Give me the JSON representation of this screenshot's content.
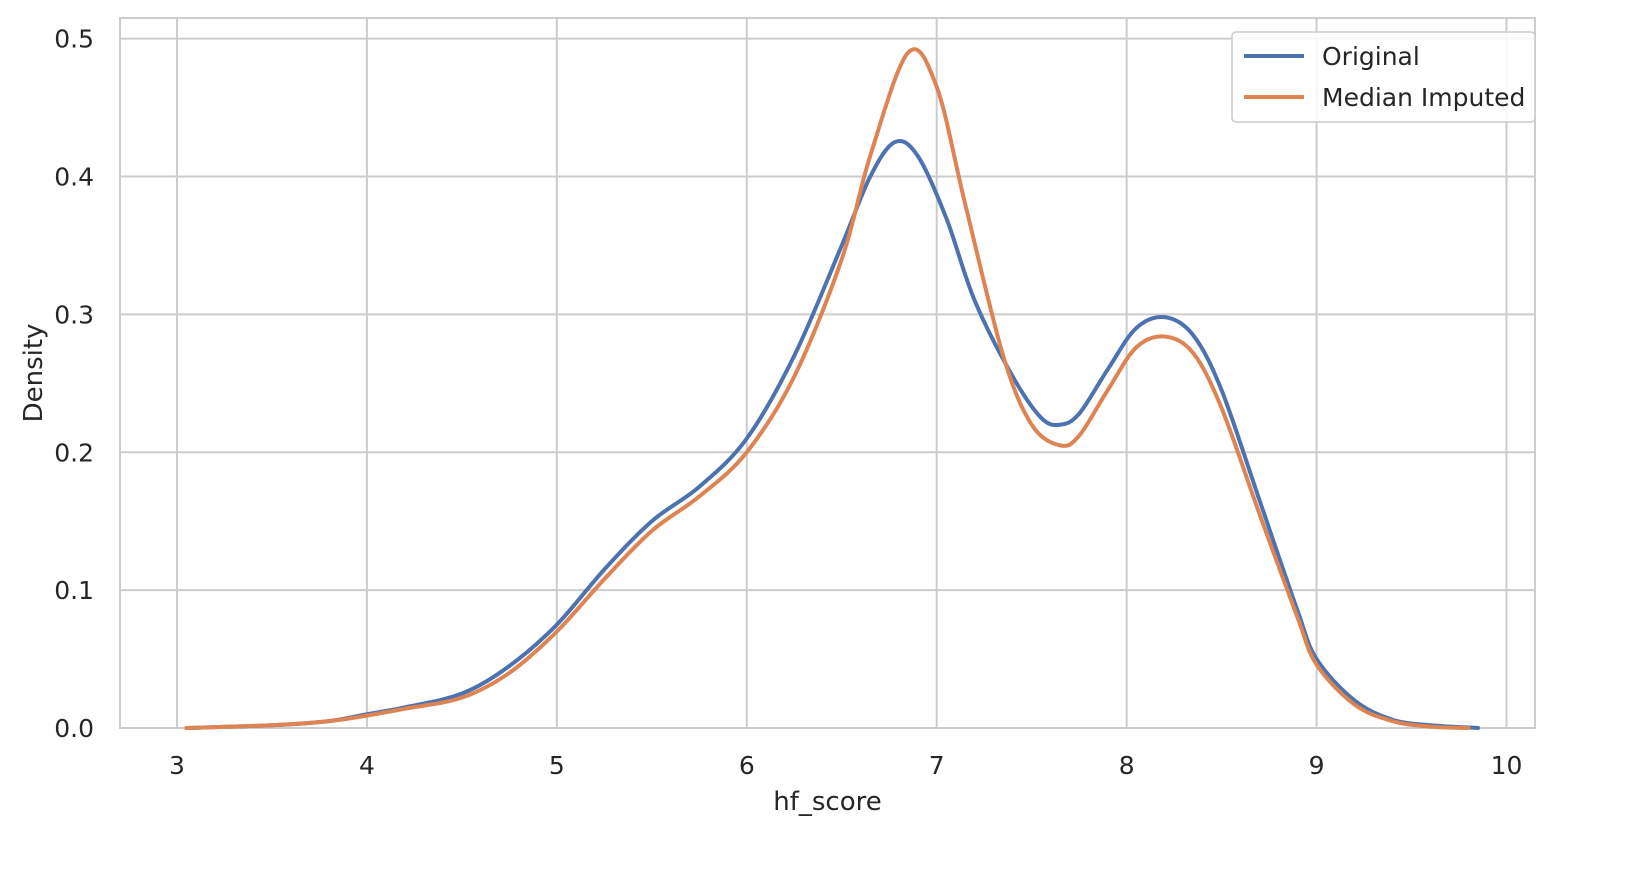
{
  "chart_data": {
    "type": "line",
    "title": "",
    "xlabel": "hf_score",
    "ylabel": "Density",
    "xlim": [
      2.7,
      10.15
    ],
    "ylim": [
      0.0,
      0.515
    ],
    "xticks": [
      3,
      4,
      5,
      6,
      7,
      8,
      9,
      10
    ],
    "xtick_labels": [
      "3",
      "4",
      "5",
      "6",
      "7",
      "8",
      "9",
      "10"
    ],
    "yticks": [
      0.0,
      0.1,
      0.2,
      0.3,
      0.4,
      0.5
    ],
    "ytick_labels": [
      "0.0",
      "0.1",
      "0.2",
      "0.3",
      "0.4",
      "0.5"
    ],
    "grid": true,
    "legend_position": "top-right",
    "series": [
      {
        "name": "Original",
        "color": "#4c72b0",
        "x": [
          3.05,
          3.5,
          3.8,
          4.0,
          4.2,
          4.5,
          4.75,
          5.0,
          5.25,
          5.5,
          5.75,
          6.0,
          6.25,
          6.5,
          6.65,
          6.78,
          6.9,
          7.05,
          7.2,
          7.4,
          7.55,
          7.65,
          7.75,
          7.9,
          8.05,
          8.2,
          8.35,
          8.5,
          8.7,
          8.9,
          9.0,
          9.2,
          9.4,
          9.6,
          9.85
        ],
        "y": [
          0.0,
          0.002,
          0.005,
          0.01,
          0.015,
          0.025,
          0.045,
          0.075,
          0.115,
          0.15,
          0.175,
          0.21,
          0.27,
          0.35,
          0.4,
          0.425,
          0.415,
          0.37,
          0.31,
          0.255,
          0.225,
          0.22,
          0.228,
          0.26,
          0.29,
          0.298,
          0.285,
          0.245,
          0.165,
          0.085,
          0.05,
          0.02,
          0.006,
          0.002,
          0.0
        ]
      },
      {
        "name": "Median Imputed",
        "color": "#dd8452",
        "x": [
          3.05,
          3.5,
          3.8,
          4.0,
          4.2,
          4.5,
          4.75,
          5.0,
          5.25,
          5.5,
          5.75,
          6.0,
          6.25,
          6.5,
          6.65,
          6.85,
          7.0,
          7.15,
          7.35,
          7.5,
          7.65,
          7.75,
          7.9,
          8.05,
          8.2,
          8.35,
          8.5,
          8.7,
          8.9,
          9.0,
          9.2,
          9.4,
          9.6,
          9.8
        ],
        "y": [
          0.0,
          0.002,
          0.005,
          0.009,
          0.014,
          0.022,
          0.04,
          0.07,
          0.108,
          0.143,
          0.168,
          0.2,
          0.255,
          0.34,
          0.415,
          0.49,
          0.465,
          0.38,
          0.27,
          0.22,
          0.205,
          0.212,
          0.245,
          0.276,
          0.284,
          0.272,
          0.232,
          0.155,
          0.08,
          0.046,
          0.017,
          0.005,
          0.001,
          0.0
        ]
      }
    ]
  }
}
